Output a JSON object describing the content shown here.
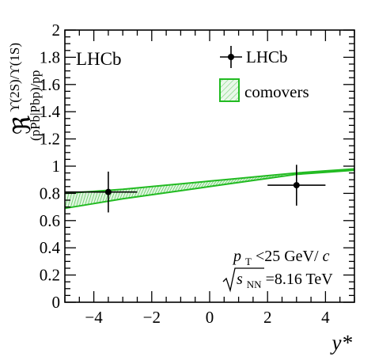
{
  "chart_data": {
    "type": "scatter",
    "title": "",
    "xlabel": "y*",
    "ylabel": "ℜ^{ϒ(2S)/ϒ(1S)}_{(pPb|Pbp)/pp}",
    "xlim": [
      -5,
      5
    ],
    "ylim": [
      0,
      2
    ],
    "x_ticks": [
      "−4",
      "−2",
      "0",
      "2",
      "4"
    ],
    "x_tick_values": [
      -4,
      -2,
      0,
      2,
      4
    ],
    "y_ticks": [
      "0",
      "0.2",
      "0.4",
      "0.6",
      "0.8",
      "1",
      "1.2",
      "1.4",
      "1.6",
      "1.8",
      "2"
    ],
    "y_tick_values": [
      0,
      0.2,
      0.4,
      0.6,
      0.8,
      1,
      1.2,
      1.4,
      1.6,
      1.8,
      2
    ],
    "experiment_label": "LHCb",
    "series": [
      {
        "name": "LHCb",
        "kind": "points",
        "color": "#000000",
        "points": [
          {
            "x": -3.5,
            "y": 0.81,
            "x_err": [
              1.5,
              1.0
            ],
            "y_err": [
              0.15,
              0.15
            ]
          },
          {
            "x": 3.0,
            "y": 0.86,
            "x_err": [
              1.0,
              1.0
            ],
            "y_err": [
              0.15,
              0.15
            ]
          }
        ]
      },
      {
        "name": "comovers",
        "kind": "band",
        "color": "#22bb22",
        "x": [
          -5,
          -4,
          -3,
          -2,
          -1,
          0,
          1,
          2,
          3,
          4,
          5
        ],
        "upper": [
          0.8,
          0.815,
          0.83,
          0.85,
          0.87,
          0.89,
          0.91,
          0.93,
          0.95,
          0.965,
          0.98
        ],
        "lower": [
          0.69,
          0.725,
          0.76,
          0.79,
          0.82,
          0.85,
          0.88,
          0.91,
          0.94,
          0.955,
          0.97
        ]
      }
    ],
    "annotations": {
      "pt_label": "p",
      "pt_sub": "T",
      "pt_rest": "<25 GeV/",
      "pt_c": "c",
      "energy_label": "s",
      "energy_sub": "NN",
      "energy_rest": "=8.16 TeV"
    },
    "ylabel_parts": {
      "main": "ℜ",
      "super": "ϒ(2S)/ϒ(1S)",
      "sub": "(pPb|Pbp)/pp"
    },
    "grid": false,
    "legend_position": "top-right"
  }
}
